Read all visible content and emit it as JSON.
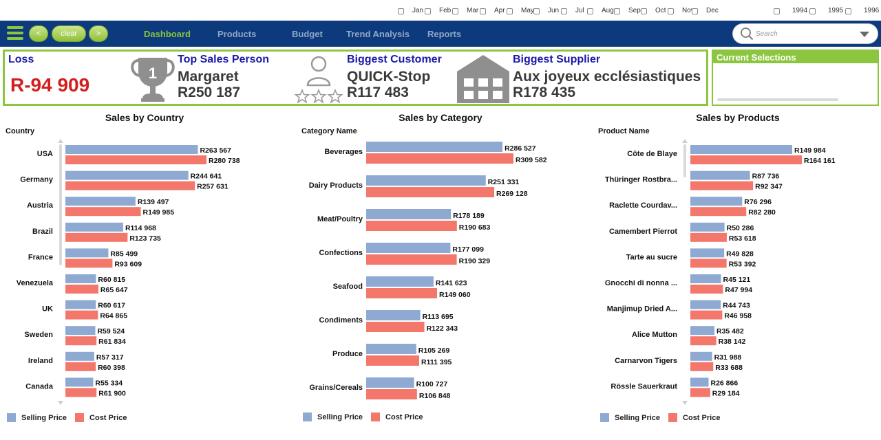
{
  "colors": {
    "navbar": "#0d3a7c",
    "accent_green": "#8cc63f",
    "selling": "#8eaad2",
    "cost": "#f3776b",
    "loss_red": "#d21e1e",
    "kpi_title": "#1a1aa8"
  },
  "filters": {
    "months": [
      "Jan",
      "Feb",
      "Mar",
      "Apr",
      "May",
      "Jun",
      "Jul",
      "Aug",
      "Sep",
      "Oct",
      "Nov",
      "Dec"
    ],
    "years": [
      "1994",
      "1995",
      "1996"
    ]
  },
  "nav": {
    "clear_label": "clear",
    "prev_icon": "chevron-left-icon",
    "next_icon": "chevron-right-icon",
    "prev_label": "<",
    "next_label": ">",
    "items": [
      "Dashboard",
      "Products",
      "Budget",
      "Trend Analysis",
      "Reports"
    ],
    "active": "Dashboard",
    "search_placeholder": "Search"
  },
  "kpis": {
    "loss": {
      "title": "Loss",
      "value": "R-94 909"
    },
    "top_sales_person": {
      "title": "Top Sales Person",
      "name": "Margaret",
      "value": "R250 187",
      "icon": "trophy-icon",
      "rank": "1"
    },
    "biggest_customer": {
      "title": "Biggest Customer",
      "name": "QUICK-Stop",
      "value": "R117 483",
      "icon": "person-stars-icon"
    },
    "biggest_supplier": {
      "title": "Biggest Supplier",
      "name": "Aux joyeux ecclésiastiques",
      "value": "R178 435",
      "icon": "warehouse-icon"
    }
  },
  "current_selections": {
    "title": "Current Selections"
  },
  "legend": {
    "selling": "Selling Price",
    "cost": "Cost Price"
  },
  "chart_data": [
    {
      "type": "bar",
      "orientation": "horizontal",
      "title": "Sales by Country",
      "dimension_label": "Country",
      "categories": [
        "USA",
        "Germany",
        "Austria",
        "Brazil",
        "France",
        "Venezuela",
        "UK",
        "Sweden",
        "Ireland",
        "Canada"
      ],
      "series": [
        {
          "name": "Selling Price",
          "values": [
            263567,
            244641,
            139497,
            114968,
            85499,
            60815,
            60617,
            59524,
            57317,
            55334
          ],
          "labels": [
            "R263 567",
            "R244 641",
            "R139 497",
            "R114 968",
            "R85 499",
            "R60 815",
            "R60 617",
            "R59 524",
            "R57 317",
            "R55 334"
          ]
        },
        {
          "name": "Cost Price",
          "values": [
            280738,
            257631,
            149985,
            123735,
            93609,
            65647,
            64865,
            61834,
            60398,
            61900
          ],
          "labels": [
            "R280 738",
            "R257 631",
            "R149 985",
            "R123 735",
            "R93 609",
            "R65 647",
            "R64 865",
            "R61 834",
            "R60 398",
            "R61 900"
          ]
        }
      ]
    },
    {
      "type": "bar",
      "orientation": "horizontal",
      "title": "Sales by Category",
      "dimension_label": "Category Name",
      "categories": [
        "Beverages",
        "Dairy Products",
        "Meat/Poultry",
        "Confections",
        "Seafood",
        "Condiments",
        "Produce",
        "Grains/Cereals"
      ],
      "series": [
        {
          "name": "Selling Price",
          "values": [
            286527,
            251331,
            178189,
            177099,
            141623,
            113695,
            105269,
            100727
          ],
          "labels": [
            "R286 527",
            "R251 331",
            "R178 189",
            "R177 099",
            "R141 623",
            "R113 695",
            "R105 269",
            "R100 727"
          ]
        },
        {
          "name": "Cost Price",
          "values": [
            309582,
            269128,
            190683,
            190329,
            149060,
            122343,
            111395,
            106848
          ],
          "labels": [
            "R309 582",
            "R269 128",
            "R190 683",
            "R190 329",
            "R149 060",
            "R122 343",
            "R111 395",
            "R106 848"
          ]
        }
      ]
    },
    {
      "type": "bar",
      "orientation": "horizontal",
      "title": "Sales by Products",
      "dimension_label": "Product Name",
      "categories": [
        "Côte de Blaye",
        "Thüringer Rostbra...",
        "Raclette Courdav...",
        "Camembert Pierrot",
        "Tarte au sucre",
        "Gnocchi di nonna ...",
        "Manjimup Dried A...",
        "Alice Mutton",
        "Carnarvon Tigers",
        "Rössle Sauerkraut"
      ],
      "series": [
        {
          "name": "Selling Price",
          "values": [
            149984,
            87736,
            76296,
            50286,
            49828,
            45121,
            44743,
            35482,
            31988,
            26866
          ],
          "labels": [
            "R149 984",
            "R87 736",
            "R76 296",
            "R50 286",
            "R49 828",
            "R45 121",
            "R44 743",
            "R35 482",
            "R31 988",
            "R26 866"
          ]
        },
        {
          "name": "Cost Price",
          "values": [
            164161,
            92347,
            82280,
            53618,
            53392,
            47994,
            46958,
            38142,
            33688,
            29184
          ],
          "labels": [
            "R164 161",
            "R92 347",
            "R82 280",
            "R53 618",
            "R53 392",
            "R47 994",
            "R46 958",
            "R38 142",
            "R33 688",
            "R29 184"
          ]
        }
      ]
    }
  ]
}
